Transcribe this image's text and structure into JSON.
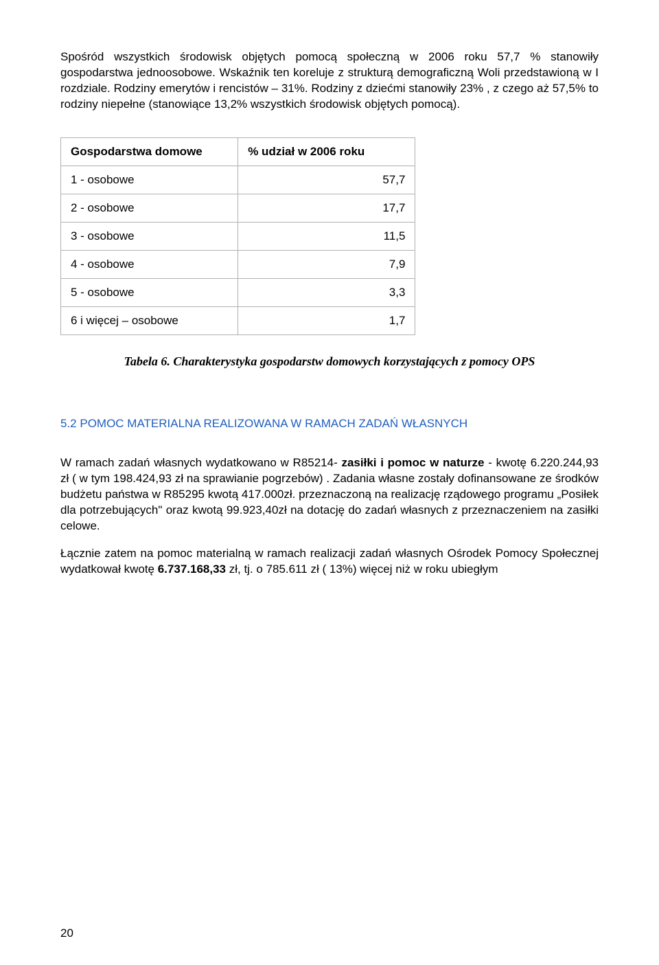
{
  "paragraphs": {
    "p1": "Spośród wszystkich środowisk objętych pomocą społeczną w 2006 roku 57,7 % stanowiły gospodarstwa jednoosobowe. Wskaźnik ten koreluje z strukturą demograficzną Woli przedstawioną w I rozdziale. Rodziny emerytów i rencistów – 31%. Rodziny z dziećmi stanowiły 23% , z czego aż 57,5% to rodziny niepełne (stanowiące 13,2% wszystkich środowisk objętych pomocą).",
    "p2_pre": "W ramach zadań własnych wydatkowano w R85214- ",
    "p2_bold": "zasiłki i pomoc w naturze",
    "p2_post": " - kwotę 6.220.244,93 zł ( w tym 198.424,93 zł na sprawianie pogrzebów) . Zadania własne zostały dofinansowane ze środków budżetu państwa w R85295 kwotą 417.000zł. przeznaczoną na realizację rządowego programu „Posiłek dla potrzebujących\" oraz kwotą 99.923,40zł na dotację do zadań własnych z przeznaczeniem na zasiłki celowe.",
    "p3_pre": "Łącznie zatem na pomoc materialną w ramach realizacji zadań własnych Ośrodek Pomocy Społecznej wydatkował kwotę ",
    "p3_bold": "6.737.168,33",
    "p3_post": " zł, tj. o 785.611 zł ( 13%) więcej niż w roku ubiegłym"
  },
  "table": {
    "header_left": "Gospodarstwa domowe",
    "header_right": "% udział w 2006 roku",
    "rows": [
      {
        "label": "1 - osobowe",
        "value": "57,7"
      },
      {
        "label": "2 - osobowe",
        "value": "17,7"
      },
      {
        "label": "3 - osobowe",
        "value": "11,5"
      },
      {
        "label": "4 - osobowe",
        "value": "7,9"
      },
      {
        "label": "5 - osobowe",
        "value": "3,3"
      },
      {
        "label": "6 i więcej – osobowe",
        "value": "1,7"
      }
    ]
  },
  "caption": "Tabela 6. Charakterystyka gospodarstw domowych korzystających z pomocy OPS",
  "section_heading": "5.2 POMOC MATERIALNA REALIZOWANA W RAMACH ZADAŃ WŁASNYCH",
  "page_number": "20"
}
